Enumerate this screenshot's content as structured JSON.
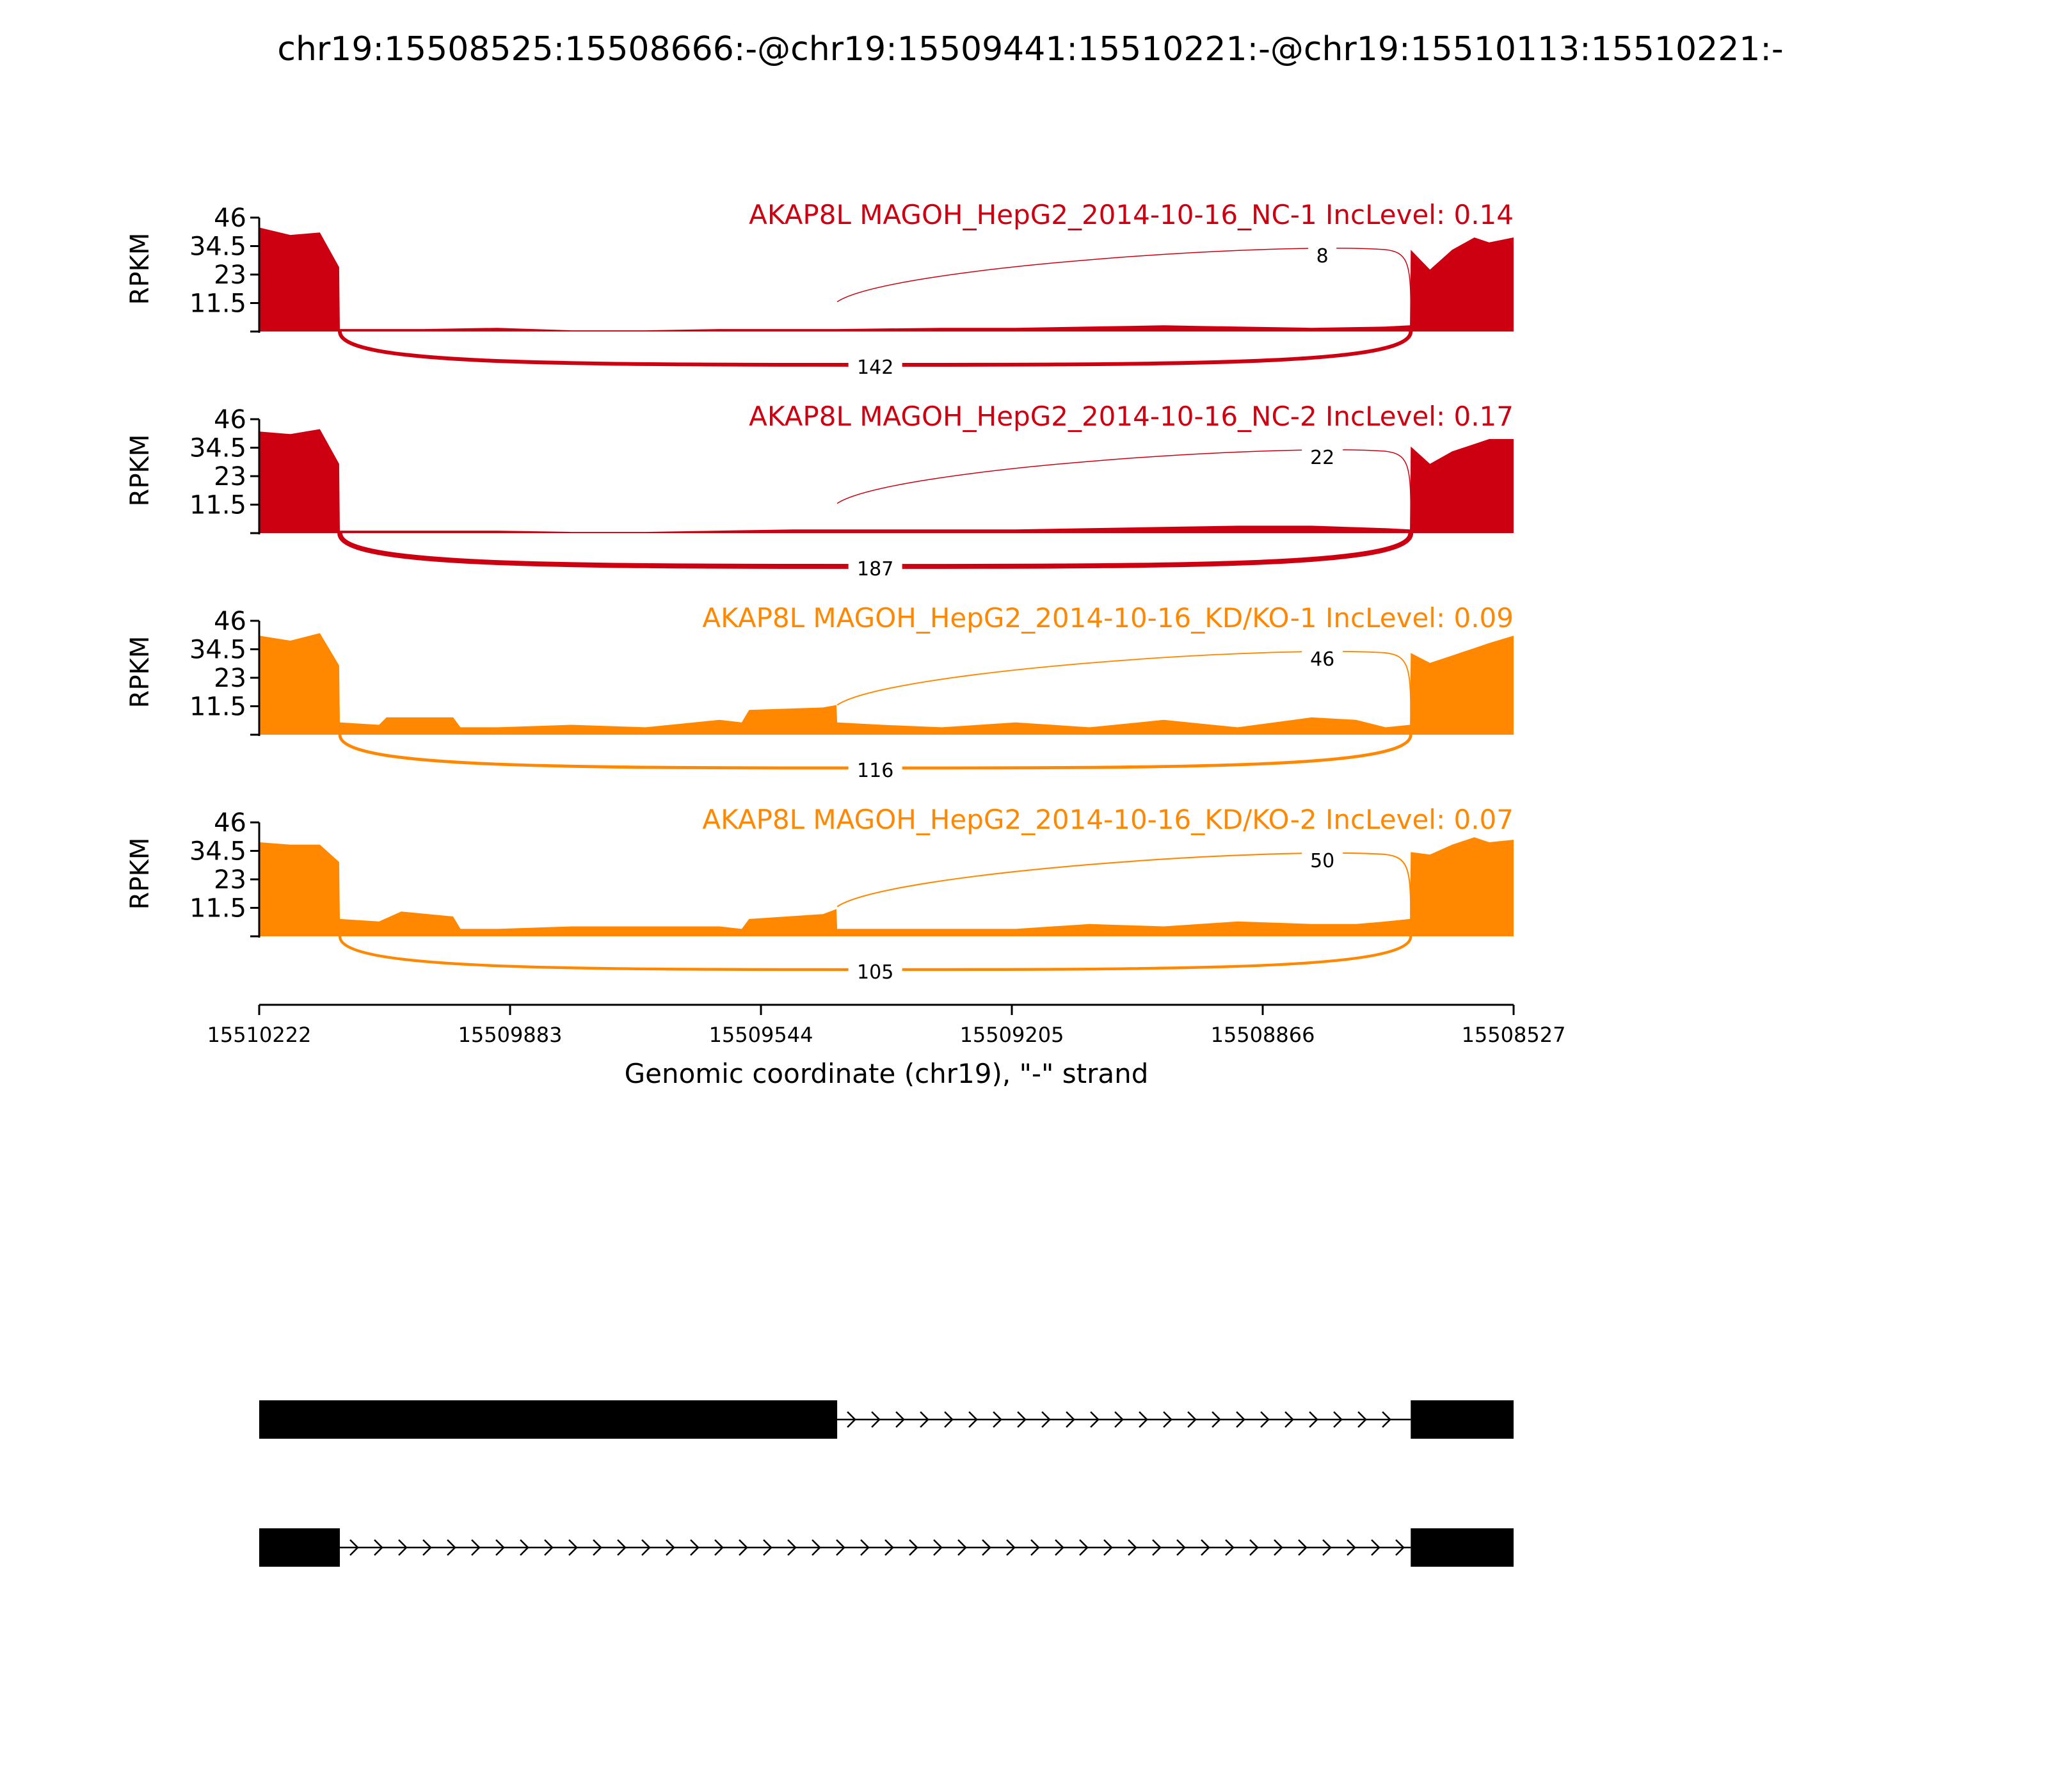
{
  "chart_data": {
    "type": "area",
    "title": "chr19:15508525:15508666:-@chr19:15509441:15510221:-@chr19:15510113:15510221:-",
    "xlabel": "Genomic coordinate (chr19), \"-\" strand",
    "ylabel": "RPKM",
    "x_ticks": [
      "15510222",
      "15509883",
      "15509544",
      "15509205",
      "15508866",
      "15508527"
    ],
    "xlim": [
      15510222,
      15508527
    ],
    "ylim": [
      0,
      46
    ],
    "y_ticks": [
      "46",
      "34.5",
      "23",
      "11.5"
    ],
    "colors": {
      "NC": "#cc0011",
      "KD": "#ff8800",
      "exon": "#000000"
    },
    "exon_regions": {
      "upstream": [
        15510222,
        15510113
      ],
      "middle": [
        15510113,
        15509441
      ],
      "downstream": [
        15508666,
        15508527
      ]
    },
    "tracks": [
      {
        "label": "AKAP8L MAGOH_HepG2_2014-10-16_NC-1 IncLevel: 0.14",
        "color": "#cc0011",
        "coverage": {
          "x": [
            15510222,
            15510180,
            15510140,
            15510114,
            15510113,
            15510000,
            15509900,
            15509800,
            15509700,
            15509600,
            15509500,
            15509442,
            15509441,
            15509300,
            15509200,
            15509100,
            15509000,
            15508900,
            15508800,
            15508700,
            15508667,
            15508666,
            15508640,
            15508610,
            15508580,
            15508560,
            15508527
          ],
          "y": [
            42,
            39,
            40,
            26,
            1,
            1,
            1.5,
            0.5,
            0.5,
            1,
            1,
            1,
            1,
            1.5,
            1.5,
            2,
            2.5,
            2,
            1.5,
            2,
            2.5,
            33,
            25,
            33,
            38,
            36,
            38
          ]
        },
        "junctions": [
          {
            "label": "8",
            "from": 15509441,
            "to": 15508666,
            "side": "top"
          },
          {
            "label": "142",
            "from": 15510113,
            "to": 15508666,
            "side": "bottom"
          }
        ]
      },
      {
        "label": "AKAP8L MAGOH_HepG2_2014-10-16_NC-2 IncLevel: 0.17",
        "color": "#cc0011",
        "coverage": {
          "x": [
            15510222,
            15510180,
            15510140,
            15510114,
            15510113,
            15510000,
            15509900,
            15509800,
            15509700,
            15509600,
            15509500,
            15509442,
            15509441,
            15509300,
            15509200,
            15509100,
            15509000,
            15508900,
            15508800,
            15508700,
            15508667,
            15508666,
            15508640,
            15508610,
            15508580,
            15508560,
            15508527
          ],
          "y": [
            41,
            40,
            42,
            28,
            1,
            1,
            1,
            0.5,
            0.5,
            1,
            1.5,
            1.5,
            1.5,
            1.5,
            1.5,
            2,
            2.5,
            3,
            3,
            2,
            1.5,
            35,
            28,
            33,
            36,
            38,
            38
          ]
        },
        "junctions": [
          {
            "label": "22",
            "from": 15509441,
            "to": 15508666,
            "side": "top"
          },
          {
            "label": "187",
            "from": 15510113,
            "to": 15508666,
            "side": "bottom"
          }
        ]
      },
      {
        "label": "AKAP8L MAGOH_HepG2_2014-10-16_KD/KO-1 IncLevel: 0.09",
        "color": "#ff8800",
        "coverage": {
          "x": [
            15510222,
            15510180,
            15510140,
            15510114,
            15510113,
            15510060,
            15510050,
            15509960,
            15509950,
            15509900,
            15509800,
            15509700,
            15509600,
            15509570,
            15509560,
            15509460,
            15509442,
            15509441,
            15509380,
            15509300,
            15509200,
            15509100,
            15509000,
            15508900,
            15508800,
            15508740,
            15508700,
            15508667,
            15508666,
            15508640,
            15508610,
            15508580,
            15508560,
            15508527
          ],
          "y": [
            40,
            38,
            41,
            28,
            5,
            4,
            7,
            7,
            3,
            3,
            4,
            3,
            6,
            5,
            10,
            11,
            12,
            5,
            4,
            3,
            5,
            3,
            6,
            3,
            7,
            6,
            3,
            4,
            33,
            29,
            32,
            35,
            37,
            40
          ]
        },
        "junctions": [
          {
            "label": "46",
            "from": 15509441,
            "to": 15508666,
            "side": "top"
          },
          {
            "label": "116",
            "from": 15510113,
            "to": 15508666,
            "side": "bottom"
          }
        ]
      },
      {
        "label": "AKAP8L MAGOH_HepG2_2014-10-16_KD/KO-2 IncLevel: 0.07",
        "color": "#ff8800",
        "coverage": {
          "x": [
            15510222,
            15510180,
            15510140,
            15510114,
            15510113,
            15510060,
            15510030,
            15509960,
            15509950,
            15509900,
            15509800,
            15509700,
            15509600,
            15509570,
            15509560,
            15509460,
            15509442,
            15509441,
            15509380,
            15509300,
            15509200,
            15509100,
            15509000,
            15508900,
            15508800,
            15508740,
            15508700,
            15508667,
            15508666,
            15508640,
            15508610,
            15508580,
            15508560,
            15508527
          ],
          "y": [
            38,
            37,
            37,
            30,
            7,
            6,
            10,
            8,
            3,
            3,
            4,
            4,
            4,
            3,
            7,
            9,
            11,
            3,
            3,
            3,
            3,
            5,
            4,
            6,
            5,
            5,
            6,
            7,
            34,
            33,
            37,
            40,
            38,
            39
          ]
        },
        "junctions": [
          {
            "label": "50",
            "from": 15509441,
            "to": 15508666,
            "side": "top"
          },
          {
            "label": "105",
            "from": 15510113,
            "to": 15508666,
            "side": "bottom"
          }
        ]
      }
    ],
    "isoforms": [
      {
        "exons": [
          [
            15510222,
            15509441
          ],
          [
            15508666,
            15508527
          ]
        ]
      },
      {
        "exons": [
          [
            15510222,
            15510113
          ],
          [
            15508666,
            15508527
          ]
        ]
      }
    ]
  }
}
